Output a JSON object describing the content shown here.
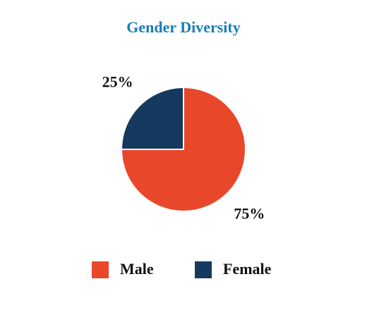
{
  "chart_data": {
    "type": "pie",
    "title": "Gender Diversity",
    "categories": [
      "Male",
      "Female"
    ],
    "values": [
      75,
      25
    ],
    "value_labels": [
      "75%",
      "25%"
    ],
    "colors": [
      "#e8472a",
      "#163a5f"
    ],
    "legend": "bottom"
  }
}
